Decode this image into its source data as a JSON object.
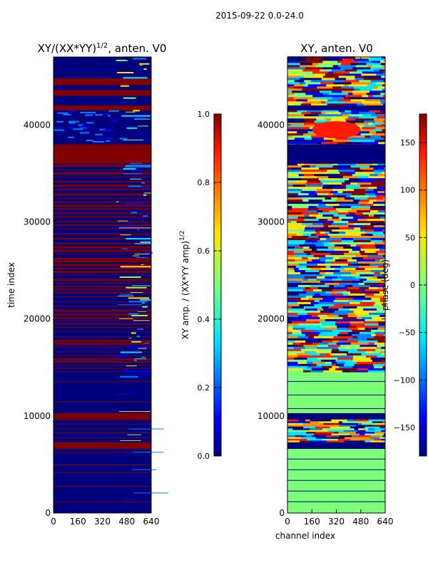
{
  "figure": {
    "suptitle": "2015-09-22 0.0-24.0"
  },
  "colors": {
    "dark_blue": "#00007f",
    "blue": "#0000ff",
    "light_blue": "#0080ff",
    "cyan": "#00e5ff",
    "green": "#7dff7a",
    "yellow": "#ffe500",
    "orange": "#ff8c00",
    "red": "#ff1a00",
    "dark_red": "#800000"
  },
  "chart_data": [
    {
      "type": "heatmap",
      "title": "XY/(XX*YY)^{1/2}, anten. V0",
      "title_main": "XY/(XX*YY)",
      "title_exp": "1/2",
      "title_suffix": ", anten. V0",
      "xlabel": "",
      "ylabel": "time index",
      "xlim": [
        0,
        640
      ],
      "ylim": [
        0,
        47000
      ],
      "xticks": [
        0,
        160,
        320,
        480,
        640
      ],
      "yticks": [
        0,
        10000,
        20000,
        30000,
        40000
      ],
      "colorbar": {
        "label": "XY amp. / (XX*YY amp)^{1/2}",
        "label_main": "XY amp. / (XX*YY amp)",
        "label_exp": "1/2",
        "range": [
          0.0,
          1.0
        ],
        "ticks": [
          "0.0",
          "0.2",
          "0.4",
          "0.6",
          "0.8",
          "1.0"
        ],
        "tick_values": [
          0.0,
          0.2,
          0.4,
          0.6,
          0.8,
          1.0
        ]
      },
      "flagged_row_bands": [
        [
          6600,
          7300
        ],
        [
          9600,
          10300
        ],
        [
          36000,
          38000
        ],
        [
          41500,
          42000
        ],
        [
          43000,
          43600
        ],
        [
          44100,
          44800
        ]
      ],
      "high_amplitude_channel_range": [
        410,
        640
      ]
    },
    {
      "type": "heatmap",
      "title": "XY, anten. V0",
      "xlabel": "channel index",
      "ylabel": "",
      "xlim": [
        0,
        640
      ],
      "ylim": [
        0,
        47000
      ],
      "xticks": [
        0,
        160,
        320,
        480,
        640
      ],
      "yticks": [
        0,
        10000,
        20000,
        30000,
        40000
      ],
      "colorbar": {
        "label": "phase (deg)",
        "range": [
          -180,
          180
        ],
        "ticks": [
          "−150",
          "−100",
          "−50",
          "0",
          "50",
          "100",
          "150"
        ],
        "tick_values": [
          -150,
          -100,
          -50,
          0,
          50,
          100,
          150
        ]
      },
      "constant_phase_bands": [
        [
          0,
          6600
        ],
        [
          10300,
          14500
        ]
      ],
      "flagged_row_bands": [
        [
          6600,
          7300
        ],
        [
          9600,
          10300
        ],
        [
          36000,
          38000
        ],
        [
          41500,
          42000
        ]
      ]
    }
  ]
}
